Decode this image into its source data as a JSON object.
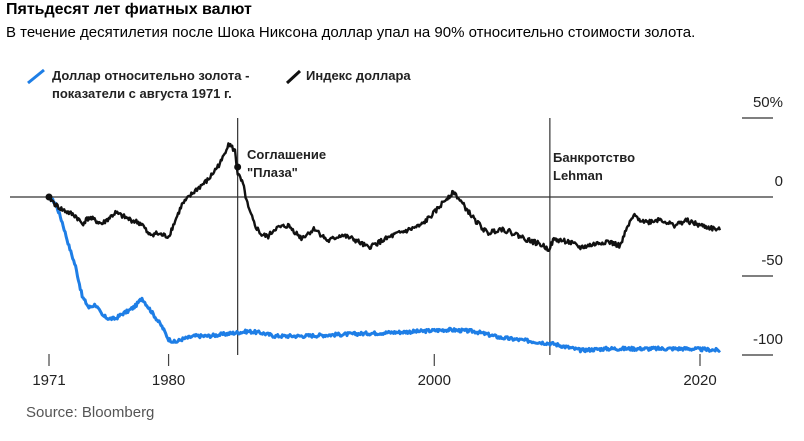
{
  "title": "Пятьдесят лет фиатных валют",
  "subtitle": "В течение десятилетия после Шока Никсона доллар упал на 90% относительно стоимости золота.",
  "source": "Source: Bloomberg",
  "chart_data": {
    "type": "line",
    "xlim": [
      1971,
      2022
    ],
    "ylim": [
      -100,
      50
    ],
    "x_ticks": [
      "1971",
      "1980",
      "2000",
      "2020"
    ],
    "x_tick_values": [
      1971,
      1980,
      2000,
      2020
    ],
    "y_ticks": [
      "50%",
      "0",
      "-50",
      "-100"
    ],
    "y_tick_values": [
      50,
      0,
      -50,
      -100
    ],
    "legend_position": "top-left",
    "annotations": [
      {
        "x": 1985.2,
        "line1": "Соглашение",
        "line2": "\"Плаза\""
      },
      {
        "x": 2008.7,
        "line1": "Банкротство",
        "line2": "Lehman"
      }
    ],
    "series": [
      {
        "name_line1": "Доллар относительно золота -",
        "name_line2": "показатели с августа 1971 г.",
        "color": "#1e7ee6",
        "x": [
          1971.0,
          1971.5,
          1972.0,
          1972.5,
          1973.0,
          1973.5,
          1974.0,
          1974.5,
          1975.0,
          1975.5,
          1976.0,
          1976.5,
          1977.0,
          1977.5,
          1978.0,
          1978.5,
          1979.0,
          1979.5,
          1980.0,
          1980.5,
          1981.0,
          1982.0,
          1983.0,
          1984.0,
          1985.0,
          1986.0,
          1987.0,
          1988.0,
          1990.0,
          1993.0,
          1996.0,
          1999.0,
          2001.0,
          2003.0,
          2005.0,
          2007.0,
          2009.0,
          2011.0,
          2013.0,
          2016.0,
          2019.0,
          2021.5
        ],
        "y": [
          0,
          -4,
          -16,
          -31,
          -44,
          -63,
          -70,
          -68,
          -75,
          -77,
          -77,
          -74,
          -72,
          -69,
          -64,
          -70,
          -76,
          -82,
          -90,
          -92,
          -90,
          -88,
          -88,
          -87,
          -86,
          -85,
          -86,
          -88,
          -88,
          -87,
          -86,
          -85,
          -84,
          -85,
          -89,
          -91,
          -93,
          -97,
          -96,
          -96,
          -96,
          -97
        ]
      },
      {
        "name": "Индекс доллара",
        "color": "#111111",
        "x": [
          1971.0,
          1971.5,
          1972.0,
          1973.0,
          1973.5,
          1974.0,
          1975.0,
          1976.0,
          1977.0,
          1978.0,
          1978.5,
          1979.0,
          1980.0,
          1980.5,
          1981.0,
          1982.0,
          1983.0,
          1984.0,
          1984.5,
          1985.0,
          1985.2,
          1985.6,
          1986.0,
          1986.5,
          1987.0,
          1987.5,
          1988.0,
          1989.0,
          1990.0,
          1991.0,
          1992.0,
          1993.0,
          1994.0,
          1995.0,
          1996.0,
          1997.0,
          1998.0,
          1999.0,
          2000.0,
          2001.0,
          2001.5,
          2002.0,
          2003.0,
          2004.0,
          2005.0,
          2006.0,
          2007.0,
          2008.0,
          2008.6,
          2009.0,
          2010.0,
          2011.0,
          2012.0,
          2013.0,
          2014.0,
          2014.5,
          2015.0,
          2016.0,
          2017.0,
          2018.0,
          2019.0,
          2020.0,
          2021.0,
          2021.5
        ],
        "y": [
          0,
          -5,
          -8,
          -12,
          -17,
          -13,
          -17,
          -10,
          -14,
          -17,
          -24,
          -23,
          -25,
          -15,
          -5,
          4,
          11,
          23,
          34,
          29,
          15,
          8,
          -7,
          -18,
          -24,
          -25,
          -20,
          -18,
          -26,
          -20,
          -28,
          -24,
          -27,
          -32,
          -28,
          -24,
          -21,
          -18,
          -10,
          0,
          3,
          -3,
          -14,
          -23,
          -20,
          -23,
          -27,
          -30,
          -33,
          -27,
          -28,
          -32,
          -30,
          -28,
          -31,
          -20,
          -12,
          -16,
          -14,
          -18,
          -15,
          -18,
          -20,
          -21
        ]
      }
    ]
  }
}
